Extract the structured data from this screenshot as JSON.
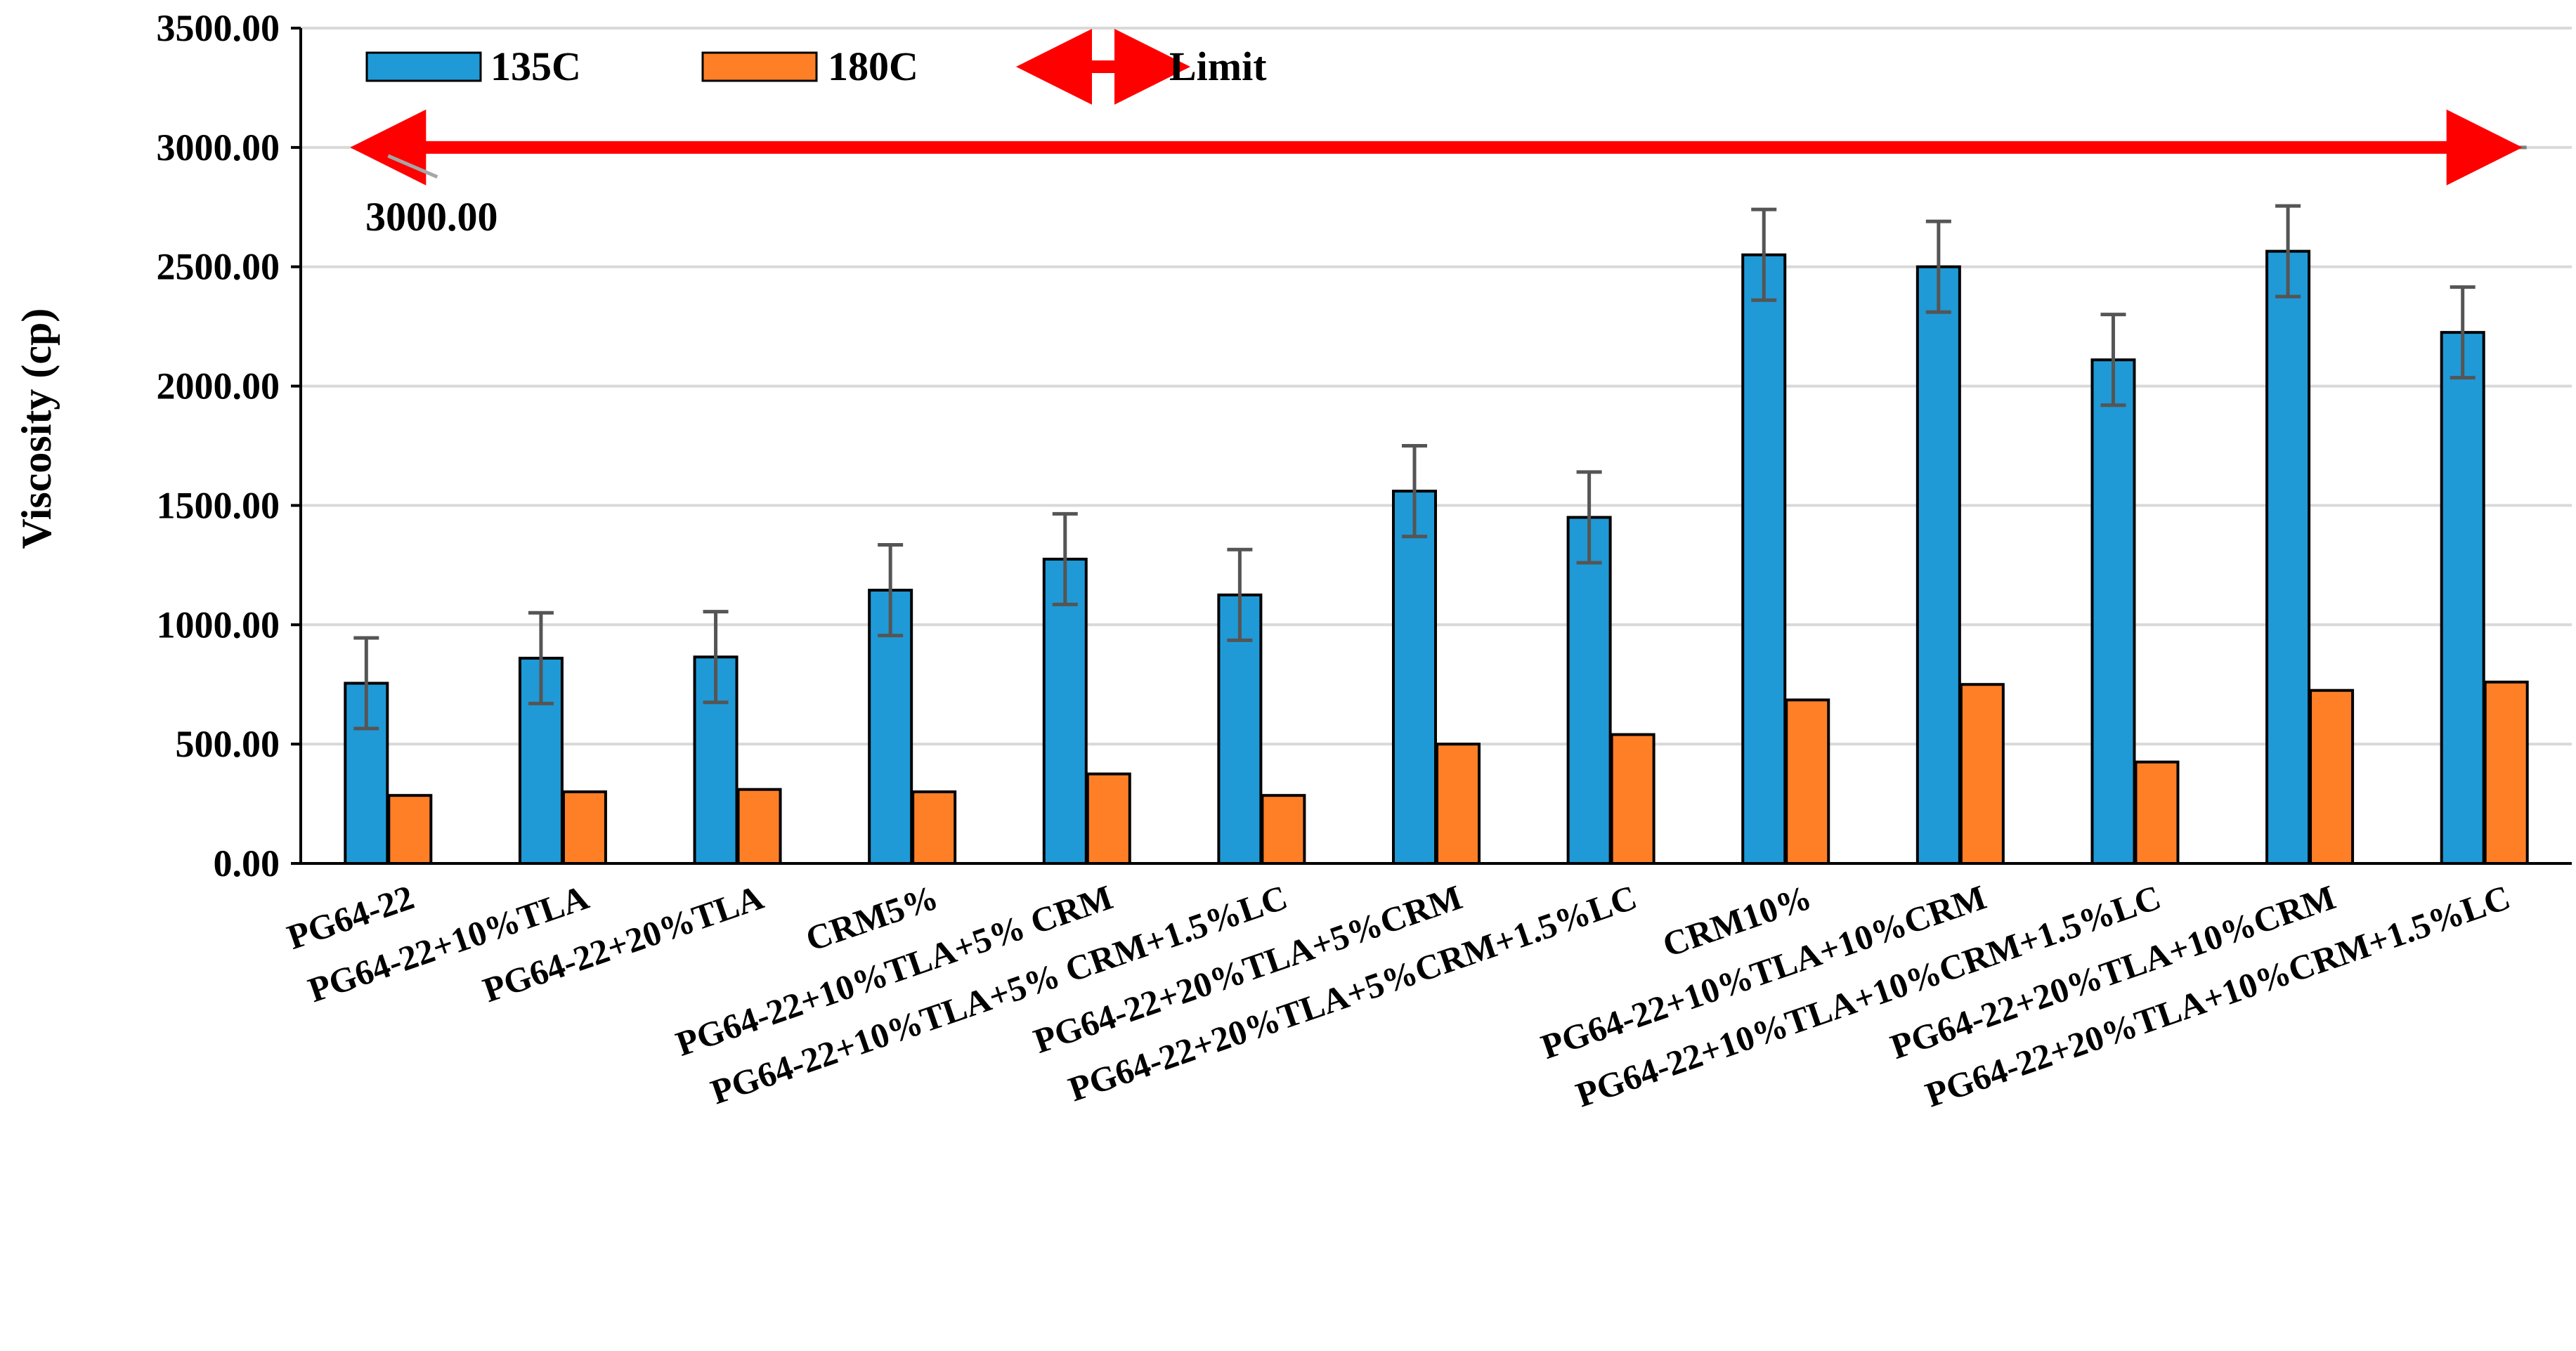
{
  "colors": {
    "series_135": "#1F9AD6",
    "series_180": "#FF7F27",
    "limit": "#FF0000",
    "errorbar": "#555555",
    "grid": "#D9D9D9",
    "axis": "#000000"
  },
  "chart_data": {
    "type": "bar",
    "title": "",
    "xlabel": "",
    "ylabel": "Viscosity (cp)",
    "ylim": [
      0,
      3500
    ],
    "yticks": [
      "0.00",
      "500.00",
      "1000.00",
      "1500.00",
      "2000.00",
      "2500.00",
      "3000.00",
      "3500.00"
    ],
    "grid": "horizontal",
    "legend_position": "top-left",
    "categories": [
      "PG64-22",
      "PG64-22+10%TLA",
      "PG64-22+20%TLA",
      "CRM5%",
      "PG64-22+10%TLA+5% CRM",
      "PG64-22+10%TLA+5% CRM+1.5%LC",
      "PG64-22+20%TLA+5%CRM",
      "PG64-22+20%TLA+5%CRM+1.5%LC",
      "CRM10%",
      "PG64-22+10%TLA+10%CRM",
      "PG64-22+10%TLA+10%CRM+1.5%LC",
      "PG64-22+20%TLA+10%CRM",
      "PG64-22+20%TLA+10%CRM+1.5%LC"
    ],
    "series": [
      {
        "name": "135C",
        "color": "#1F9AD6",
        "values": [
          755,
          860,
          865,
          1145,
          1275,
          1125,
          1560,
          1450,
          2550,
          2500,
          2110,
          2565,
          2225
        ],
        "error": [
          190,
          190,
          190,
          190,
          190,
          190,
          190,
          190,
          190,
          190,
          190,
          190,
          190
        ]
      },
      {
        "name": "180C",
        "color": "#FF7F27",
        "values": [
          285,
          300,
          310,
          300,
          375,
          285,
          500,
          540,
          685,
          750,
          425,
          725,
          760
        ]
      }
    ],
    "limit": {
      "name": "Limit",
      "value": 3000,
      "label": "3000.00"
    }
  }
}
